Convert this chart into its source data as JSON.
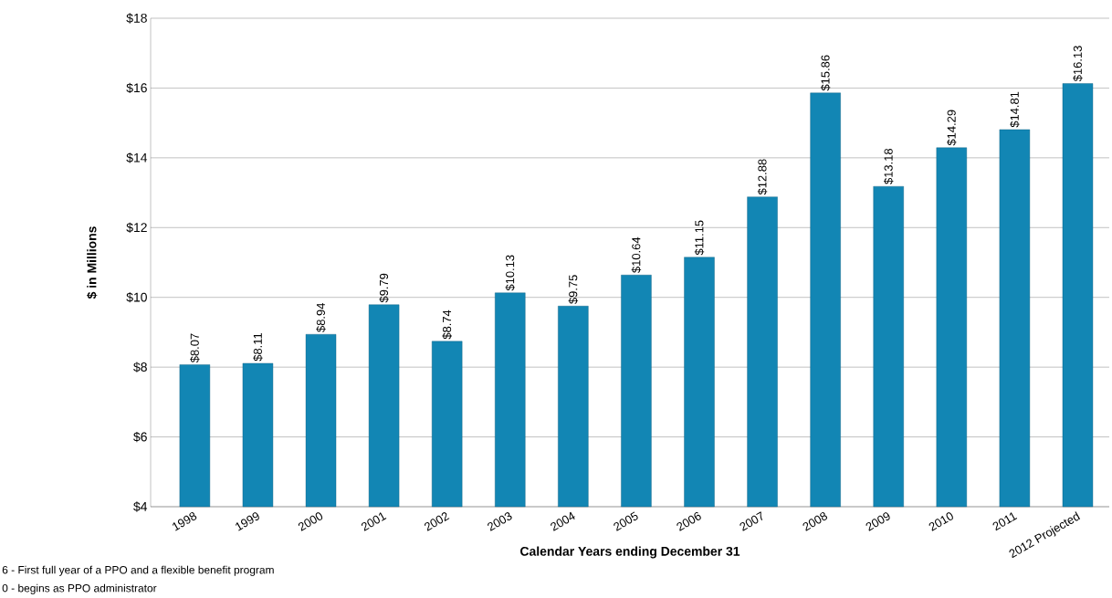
{
  "chart_data": {
    "type": "bar",
    "categories": [
      "1998",
      "1999",
      "2000",
      "2001",
      "2002",
      "2003",
      "2004",
      "2005",
      "2006",
      "2007",
      "2008",
      "2009",
      "2010",
      "2011",
      "2012 Projected"
    ],
    "values": [
      8.07,
      8.11,
      8.94,
      9.79,
      8.74,
      10.13,
      9.75,
      10.64,
      11.15,
      12.88,
      15.86,
      13.18,
      14.29,
      14.81,
      16.13
    ],
    "value_labels": [
      "$8.07",
      "$8.11",
      "$8.94",
      "$9.79",
      "$8.74",
      "$10.13",
      "$9.75",
      "$10.64",
      "$11.15",
      "$12.88",
      "$15.86",
      "$13.18",
      "$14.29",
      "$14.81",
      "$16.13"
    ],
    "color": "#1286b4",
    "ylim": [
      4,
      18
    ],
    "yticks": [
      {
        "value": 4,
        "label": "$4"
      },
      {
        "value": 6,
        "label": "$6"
      },
      {
        "value": 8,
        "label": "$8"
      },
      {
        "value": 10,
        "label": "$10"
      },
      {
        "value": 12,
        "label": "$12"
      },
      {
        "value": 14,
        "label": "$14"
      },
      {
        "value": 16,
        "label": "$16"
      },
      {
        "value": 18,
        "label": "$18"
      }
    ],
    "grid": "y",
    "xlabel": "Calendar Years ending December 31",
    "ylabel": "$ in Millions",
    "annotations": [
      "6 - First full year of a PPO and a flexible benefit program",
      "0 - begins as PPO administrator"
    ]
  }
}
